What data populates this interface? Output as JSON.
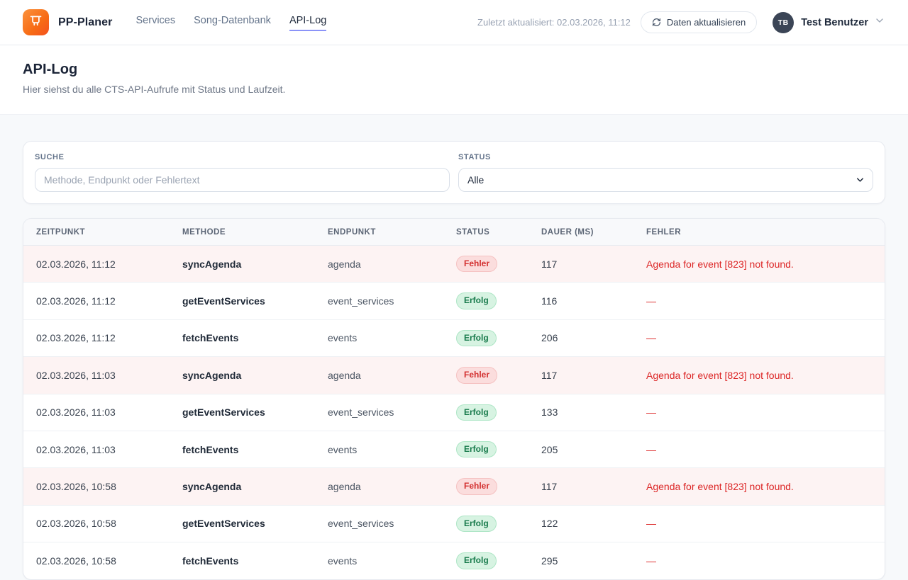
{
  "header": {
    "brand": "PP-Planer",
    "nav": [
      {
        "label": "Services",
        "active": false
      },
      {
        "label": "Song-Datenbank",
        "active": false
      },
      {
        "label": "API-Log",
        "active": true
      }
    ],
    "last_updated": "Zuletzt aktualisiert: 02.03.2026, 11:12",
    "refresh_button_label": "Daten aktualisieren",
    "user": {
      "initials": "TB",
      "name": "Test Benutzer"
    }
  },
  "page": {
    "title": "API-Log",
    "subtitle": "Hier siehst du alle CTS-API-Aufrufe mit Status und Laufzeit."
  },
  "filters": {
    "search_label": "Suche",
    "search_placeholder": "Methode, Endpunkt oder Fehlertext",
    "search_value": "",
    "status_label": "Status",
    "status_selected": "Alle"
  },
  "table": {
    "columns": [
      "Zeitpunkt",
      "Methode",
      "Endpunkt",
      "Status",
      "Dauer (ms)",
      "Fehler"
    ],
    "rows": [
      {
        "timestamp": "02.03.2026, 11:12",
        "method": "syncAgenda",
        "endpoint": "agenda",
        "status": "Fehler",
        "status_type": "error",
        "duration": "117",
        "error": "Agenda for event [823] not found."
      },
      {
        "timestamp": "02.03.2026, 11:12",
        "method": "getEventServices",
        "endpoint": "event_services",
        "status": "Erfolg",
        "status_type": "success",
        "duration": "116",
        "error": "—"
      },
      {
        "timestamp": "02.03.2026, 11:12",
        "method": "fetchEvents",
        "endpoint": "events",
        "status": "Erfolg",
        "status_type": "success",
        "duration": "206",
        "error": "—"
      },
      {
        "timestamp": "02.03.2026, 11:03",
        "method": "syncAgenda",
        "endpoint": "agenda",
        "status": "Fehler",
        "status_type": "error",
        "duration": "117",
        "error": "Agenda for event [823] not found."
      },
      {
        "timestamp": "02.03.2026, 11:03",
        "method": "getEventServices",
        "endpoint": "event_services",
        "status": "Erfolg",
        "status_type": "success",
        "duration": "133",
        "error": "—"
      },
      {
        "timestamp": "02.03.2026, 11:03",
        "method": "fetchEvents",
        "endpoint": "events",
        "status": "Erfolg",
        "status_type": "success",
        "duration": "205",
        "error": "—"
      },
      {
        "timestamp": "02.03.2026, 10:58",
        "method": "syncAgenda",
        "endpoint": "agenda",
        "status": "Fehler",
        "status_type": "error",
        "duration": "117",
        "error": "Agenda for event [823] not found."
      },
      {
        "timestamp": "02.03.2026, 10:58",
        "method": "getEventServices",
        "endpoint": "event_services",
        "status": "Erfolg",
        "status_type": "success",
        "duration": "122",
        "error": "—"
      },
      {
        "timestamp": "02.03.2026, 10:58",
        "method": "fetchEvents",
        "endpoint": "events",
        "status": "Erfolg",
        "status_type": "success",
        "duration": "295",
        "error": "—"
      }
    ]
  },
  "colors": {
    "brand_orange": "#f76b15",
    "nav_active_underline": "#8b93f8",
    "error_text": "#dc2626",
    "error_row_bg": "#fdf3f3",
    "error_badge_bg": "#fbdddd",
    "success_text": "#177a4b",
    "success_badge_bg": "#d7f3e2",
    "avatar_bg": "#3b4556"
  }
}
